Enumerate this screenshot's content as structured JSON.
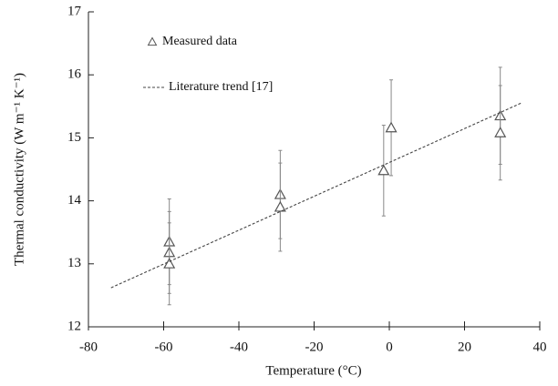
{
  "chart_data": {
    "type": "scatter",
    "xlabel": "Temperature (°C)",
    "ylabel": "Thermal conductivity (W m⁻¹ K⁻¹)",
    "xlim": [
      -80,
      40
    ],
    "xticks": [
      -80,
      -60,
      -40,
      -20,
      0,
      20,
      40
    ],
    "ylim": [
      12,
      17
    ],
    "yticks": [
      12,
      13,
      14,
      15,
      16,
      17
    ],
    "legend": "upper left",
    "series": [
      {
        "name": "Measured data",
        "type": "scatter",
        "marker": "triangle",
        "color": "#555555",
        "x": [
          -58.5,
          -58.5,
          -58.5,
          -29,
          -29,
          -1.5,
          0.5,
          29.5,
          29.5
        ],
        "values": [
          13.35,
          13.18,
          13.0,
          14.1,
          13.9,
          14.48,
          15.16,
          15.35,
          15.08
        ],
        "errors": [
          0.68,
          0.65,
          0.65,
          0.7,
          0.7,
          0.72,
          0.76,
          0.77,
          0.75
        ]
      },
      {
        "name": "Literature trend [17]",
        "type": "line",
        "dashed": true,
        "color": "#444444",
        "x": [
          -74,
          35
        ],
        "values": [
          12.62,
          15.55
        ]
      }
    ]
  }
}
